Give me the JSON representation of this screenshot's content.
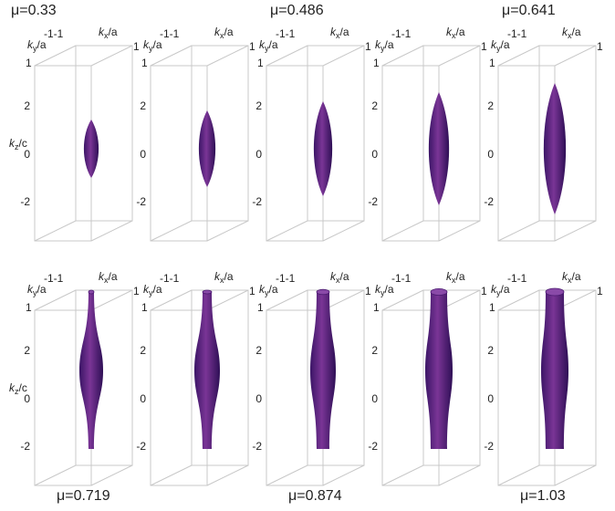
{
  "top_row": {
    "labels": [
      "μ=0.33",
      "μ=0.486",
      "μ=0.641"
    ]
  },
  "bottom_row": {
    "labels": [
      "μ=0.719",
      "μ=0.874",
      "μ=1.03"
    ]
  },
  "axes": {
    "x_axis": {
      "base": "k",
      "sub": "x",
      "tail": "/a"
    },
    "y_axis": {
      "base": "k",
      "sub": "y",
      "tail": "/a"
    },
    "z_axis": {
      "base": "k",
      "sub": "z",
      "tail": "/c"
    },
    "xy_min": "-1-1",
    "max": "1",
    "z_ticks": [
      "2",
      "0",
      "-2"
    ]
  }
}
